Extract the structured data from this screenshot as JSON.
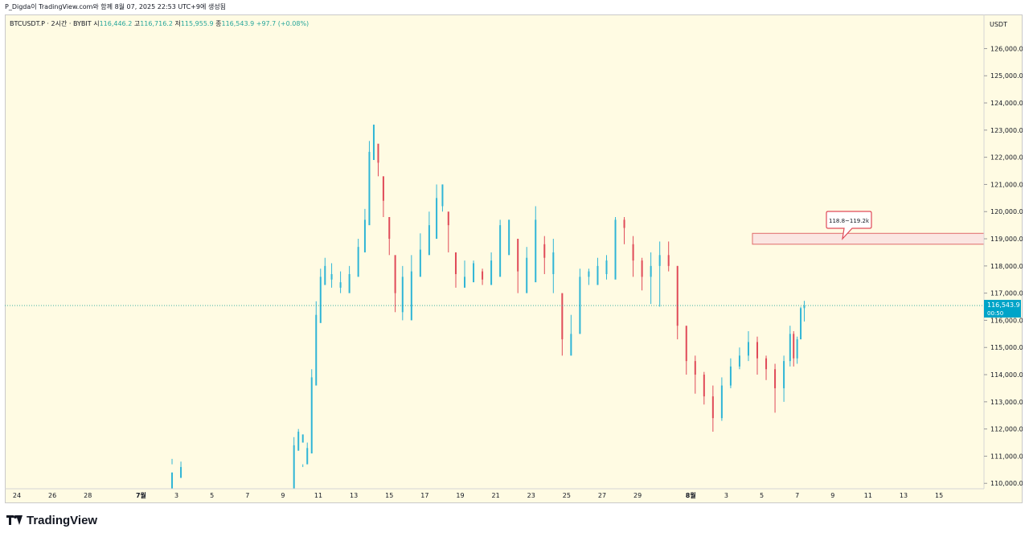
{
  "header": {
    "attribution": "P_Digda이 TradingView.com와 함께 8월 07, 2025 22:53 UTC+9에 생성됨"
  },
  "legend": {
    "symbol": "BTCUSDT.P · 2시간 · BYBIT",
    "open_label": "시",
    "open": "116,446.2",
    "high_label": "고",
    "high": "116,716.2",
    "low_label": "저",
    "low": "115,955.9",
    "close_label": "종",
    "close": "116,543.9",
    "change": "+97.7 (+0.08%)"
  },
  "price_axis": {
    "currency": "USDT",
    "ticks": [
      "126,000.0",
      "125,000.0",
      "124,000.0",
      "123,000.0",
      "122,000.0",
      "121,000.0",
      "120,000.0",
      "119,000.0",
      "118,000.0",
      "117,000.0",
      "116,000.0",
      "115,000.0",
      "114,000.0",
      "113,000.0",
      "112,000.0",
      "111,000.0",
      "110,000.0"
    ],
    "last_price": "116,543.9",
    "countdown": "00:50"
  },
  "time_axis": {
    "ticks": [
      "24",
      "26",
      "28",
      "7월",
      "3",
      "5",
      "7",
      "9",
      "11",
      "13",
      "15",
      "17",
      "19",
      "21",
      "23",
      "25",
      "27",
      "29",
      "8월",
      "3",
      "5",
      "7",
      "9",
      "11",
      "13",
      "15"
    ]
  },
  "annotation": {
    "label": "118.8~119.2k"
  },
  "colors": {
    "up": "#26a69a",
    "up_line": "#2fb5d6",
    "down": "#e04a58",
    "background": "#fffbe3",
    "last_price_tag": "#00a4c8",
    "zone_fill": "#fbe6e2",
    "zone_border": "#e06a6a"
  },
  "brand": {
    "name": "TradingView"
  },
  "chart_data": {
    "type": "candlestick",
    "ylim": [
      109800,
      126800
    ],
    "zone": [
      118800,
      119200
    ],
    "last_price": 116543.9,
    "series": [
      {
        "x": "2025-07-03",
        "values": [
          109800,
          110400,
          110900,
          110700
        ]
      },
      {
        "x": "2025-07-03",
        "values": [
          110200,
          110600,
          110800,
          110300
        ]
      },
      {
        "x": "2025-07-10",
        "values": [
          109800,
          111400,
          111700,
          111200
        ]
      },
      {
        "x": "2025-07-10",
        "values": [
          111200,
          111900,
          112000,
          111500
        ]
      },
      {
        "x": "2025-07-10",
        "values": [
          111500,
          111800,
          110600,
          110700
        ]
      },
      {
        "x": "2025-07-10",
        "values": [
          110700,
          111300,
          111500,
          111100
        ]
      },
      {
        "x": "2025-07-11",
        "values": [
          111100,
          113900,
          114200,
          113600
        ]
      },
      {
        "x": "2025-07-11",
        "values": [
          113600,
          116200,
          116700,
          115900
        ]
      },
      {
        "x": "2025-07-11",
        "values": [
          115900,
          117600,
          117900,
          117300
        ]
      },
      {
        "x": "2025-07-11",
        "values": [
          117300,
          118000,
          118300,
          117500
        ]
      },
      {
        "x": "2025-07-12",
        "values": [
          117500,
          117700,
          118100,
          117200
        ]
      },
      {
        "x": "2025-07-12",
        "values": [
          117200,
          117400,
          117800,
          117000
        ]
      },
      {
        "x": "2025-07-13",
        "values": [
          117000,
          117700,
          118000,
          117600
        ]
      },
      {
        "x": "2025-07-13",
        "values": [
          117600,
          118700,
          119000,
          118500
        ]
      },
      {
        "x": "2025-07-14",
        "values": [
          118500,
          119700,
          120100,
          119500
        ]
      },
      {
        "x": "2025-07-14",
        "values": [
          119500,
          122200,
          122600,
          121900
        ]
      },
      {
        "x": "2025-07-14",
        "values": [
          121900,
          123200,
          123200,
          122500
        ]
      },
      {
        "x": "2025-07-14",
        "values": [
          122500,
          121800,
          122200,
          121300
        ]
      },
      {
        "x": "2025-07-15",
        "values": [
          121300,
          120400,
          121000,
          119800
        ]
      },
      {
        "x": "2025-07-15",
        "values": [
          119800,
          119000,
          119500,
          118400
        ]
      },
      {
        "x": "2025-07-15",
        "values": [
          118400,
          117000,
          118000,
          116300
        ]
      },
      {
        "x": "2025-07-16",
        "values": [
          116300,
          117600,
          118000,
          116000
        ]
      },
      {
        "x": "2025-07-16",
        "values": [
          116000,
          117800,
          118400,
          117600
        ]
      },
      {
        "x": "2025-07-17",
        "values": [
          117600,
          118600,
          119200,
          118400
        ]
      },
      {
        "x": "2025-07-17",
        "values": [
          118400,
          119500,
          120000,
          119000
        ]
      },
      {
        "x": "2025-07-18",
        "values": [
          119000,
          120500,
          121000,
          120200
        ]
      },
      {
        "x": "2025-07-18",
        "values": [
          120200,
          121000,
          121000,
          120000
        ]
      },
      {
        "x": "2025-07-18",
        "values": [
          120000,
          119500,
          119700,
          118500
        ]
      },
      {
        "x": "2025-07-19",
        "values": [
          118500,
          117700,
          118500,
          117200
        ]
      },
      {
        "x": "2025-07-19",
        "values": [
          117200,
          117600,
          118200,
          117400
        ]
      },
      {
        "x": "2025-07-20",
        "values": [
          117400,
          118100,
          118200,
          117800
        ]
      },
      {
        "x": "2025-07-20",
        "values": [
          117800,
          117500,
          117900,
          117300
        ]
      },
      {
        "x": "2025-07-21",
        "values": [
          117300,
          118200,
          118500,
          117600
        ]
      },
      {
        "x": "2025-07-21",
        "values": [
          117600,
          119500,
          119700,
          118400
        ]
      },
      {
        "x": "2025-07-22",
        "values": [
          118400,
          119700,
          119700,
          119000
        ]
      },
      {
        "x": "2025-07-22",
        "values": [
          119000,
          117800,
          118500,
          117000
        ]
      },
      {
        "x": "2025-07-23",
        "values": [
          117000,
          118300,
          118700,
          117400
        ]
      },
      {
        "x": "2025-07-23",
        "values": [
          117400,
          119700,
          120200,
          118800
        ]
      },
      {
        "x": "2025-07-24",
        "values": [
          118800,
          118300,
          119100,
          117700
        ]
      },
      {
        "x": "2025-07-24",
        "values": [
          117700,
          118500,
          119000,
          117000
        ]
      },
      {
        "x": "2025-07-25",
        "values": [
          117000,
          115300,
          116000,
          114700
        ]
      },
      {
        "x": "2025-07-25",
        "values": [
          114700,
          115500,
          116200,
          114800
        ]
      },
      {
        "x": "2025-07-26",
        "values": [
          115500,
          117600,
          117900,
          115500
        ]
      },
      {
        "x": "2025-07-26",
        "values": [
          117600,
          117800,
          117900,
          117300
        ]
      },
      {
        "x": "2025-07-27",
        "values": [
          117300,
          118000,
          118300,
          117700
        ]
      },
      {
        "x": "2025-07-27",
        "values": [
          117700,
          118200,
          118400,
          117500
        ]
      },
      {
        "x": "2025-07-28",
        "values": [
          117500,
          119700,
          119800,
          117900
        ]
      },
      {
        "x": "2025-07-28",
        "values": [
          119700,
          119400,
          119800,
          118800
        ]
      },
      {
        "x": "2025-07-29",
        "values": [
          118800,
          118200,
          119100,
          117600
        ]
      },
      {
        "x": "2025-07-29",
        "values": [
          118200,
          117600,
          118300,
          117100
        ]
      },
      {
        "x": "2025-07-30",
        "values": [
          117600,
          118000,
          118500,
          116600
        ]
      },
      {
        "x": "2025-07-30",
        "values": [
          118000,
          118400,
          118900,
          116500
        ]
      },
      {
        "x": "2025-07-31",
        "values": [
          118400,
          118000,
          118900,
          117800
        ]
      },
      {
        "x": "2025-07-31",
        "values": [
          118000,
          115800,
          118000,
          115300
        ]
      },
      {
        "x": "2025-08-01",
        "values": [
          115800,
          114500,
          115700,
          114000
        ]
      },
      {
        "x": "2025-08-01",
        "values": [
          114500,
          114000,
          114700,
          113300
        ]
      },
      {
        "x": "2025-08-02",
        "values": [
          114000,
          113200,
          114100,
          112900
        ]
      },
      {
        "x": "2025-08-02",
        "values": [
          113200,
          112400,
          113600,
          111900
        ]
      },
      {
        "x": "2025-08-03",
        "values": [
          112400,
          113600,
          113900,
          112300
        ]
      },
      {
        "x": "2025-08-03",
        "values": [
          113600,
          114300,
          114600,
          113500
        ]
      },
      {
        "x": "2025-08-04",
        "values": [
          114300,
          114700,
          115000,
          114200
        ]
      },
      {
        "x": "2025-08-04",
        "values": [
          114700,
          115200,
          115600,
          114500
        ]
      },
      {
        "x": "2025-08-05",
        "values": [
          115200,
          114600,
          115400,
          114000
        ]
      },
      {
        "x": "2025-08-05",
        "values": [
          114600,
          114200,
          114700,
          113800
        ]
      },
      {
        "x": "2025-08-06",
        "values": [
          114200,
          113500,
          114400,
          112600
        ]
      },
      {
        "x": "2025-08-06",
        "values": [
          113500,
          114500,
          114700,
          113000
        ]
      },
      {
        "x": "2025-08-07",
        "values": [
          114500,
          115500,
          115800,
          114300
        ]
      },
      {
        "x": "2025-08-07",
        "values": [
          115500,
          114600,
          115600,
          114300
        ]
      },
      {
        "x": "2025-08-07",
        "values": [
          114600,
          115300,
          115400,
          114400
        ]
      },
      {
        "x": "2025-08-07",
        "values": [
          115300,
          116446.2,
          116500,
          115300
        ]
      },
      {
        "x": "2025-08-07",
        "values": [
          116446.2,
          116543.9,
          116716.2,
          115955.9
        ]
      }
    ]
  }
}
